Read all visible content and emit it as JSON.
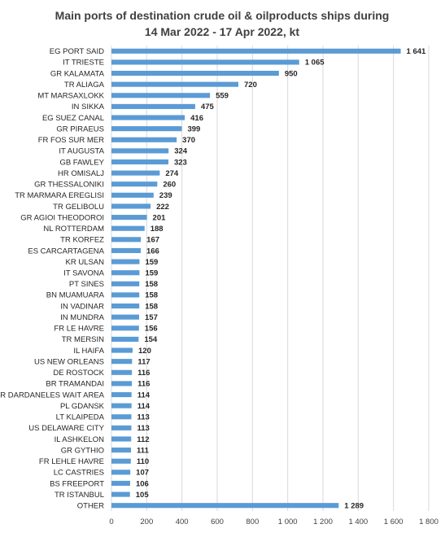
{
  "chart_data": {
    "type": "bar",
    "orientation": "horizontal",
    "title": [
      "Main ports of destination crude oil & oilproducts ships during",
      "14 Mar 2022 - 17 Apr 2022, kt"
    ],
    "xlabel": "",
    "ylabel": "",
    "xlim": [
      0,
      1800
    ],
    "x_ticks": [
      "0",
      "200",
      "400",
      "600",
      "800",
      "1 000",
      "1 200",
      "1 400",
      "1 600",
      "1 800"
    ],
    "x_tick_values": [
      0,
      200,
      400,
      600,
      800,
      1000,
      1200,
      1400,
      1600,
      1800
    ],
    "grid": true,
    "bar_color": "#5b9bd5",
    "categories": [
      "EG PORT SAID",
      "IT TRIESTE",
      "GR KALAMATA",
      "TR ALIAGA",
      "MT MARSAXLOKK",
      "IN SIKKA",
      "EG SUEZ CANAL",
      "GR PIRAEUS",
      "FR FOS SUR MER",
      "IT AUGUSTA",
      "GB FAWLEY",
      "HR OMISALJ",
      "GR THESSALONIKI",
      "TR MARMARA EREGLISI",
      "TR GELIBOLU",
      "GR AGIOI THEODOROI",
      "NL ROTTERDAM",
      "TR KORFEZ",
      "ES CARCARTAGENA",
      "KR ULSAN",
      "IT SAVONA",
      "PT SINES",
      "BN MUAMUARA",
      "IN VADINAR",
      "IN MUNDRA",
      "FR LE HAVRE",
      "TR MERSIN",
      "IL HAIFA",
      "US NEW ORLEANS",
      "DE ROSTOCK",
      "BR TRAMANDAI",
      "TR DARDANELES WAIT AREA",
      "PL GDANSK",
      "LT KLAIPEDA",
      "US DELAWARE CITY",
      "IL ASHKELON",
      "GR GYTHIO",
      "FR LEHLE HAVRE",
      "LC CASTRIES",
      "BS FREEPORT",
      "TR ISTANBUL",
      "OTHER"
    ],
    "values": [
      1641,
      1065,
      950,
      720,
      559,
      475,
      416,
      399,
      370,
      324,
      323,
      274,
      260,
      239,
      222,
      201,
      188,
      167,
      166,
      159,
      159,
      158,
      158,
      158,
      157,
      156,
      154,
      120,
      117,
      116,
      116,
      114,
      114,
      113,
      113,
      112,
      111,
      110,
      107,
      106,
      105,
      1289
    ],
    "value_labels": [
      "1 641",
      "1 065",
      "950",
      "720",
      "559",
      "475",
      "416",
      "399",
      "370",
      "324",
      "323",
      "274",
      "260",
      "239",
      "222",
      "201",
      "188",
      "167",
      "166",
      "159",
      "159",
      "158",
      "158",
      "158",
      "157",
      "156",
      "154",
      "120",
      "117",
      "116",
      "116",
      "114",
      "114",
      "113",
      "113",
      "112",
      "111",
      "110",
      "107",
      "106",
      "105",
      "1 289"
    ]
  }
}
